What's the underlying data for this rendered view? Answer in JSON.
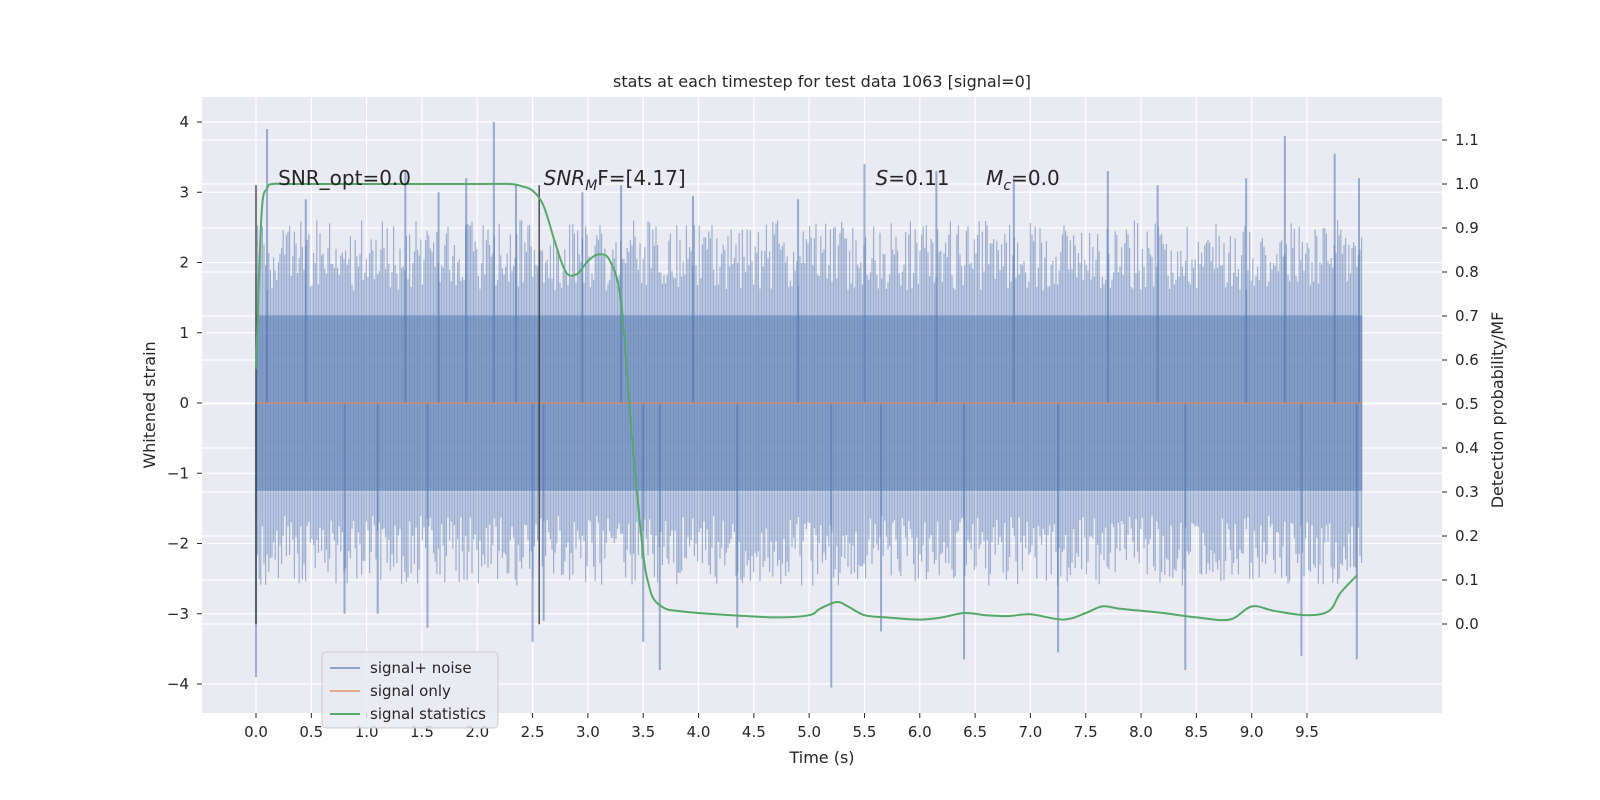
{
  "colors": {
    "background": "#ffffff",
    "plot_area": "#eaeaf2",
    "grid": "#ffffff",
    "noise": "#4c72b0",
    "signal_only": "#dd8452",
    "statistics": "#55a868",
    "marker_line": "#333333",
    "text": "#262626"
  },
  "legend": {
    "placement": "lower-left",
    "items": [
      {
        "label": "signal+ noise",
        "color": "#4c72b0"
      },
      {
        "label": "signal only",
        "color": "#dd8452"
      },
      {
        "label": "signal statistics",
        "color": "#55a868"
      }
    ]
  },
  "annotations": {
    "snr_opt": {
      "text": "SNR_opt=0.0",
      "x": 0.2
    },
    "snr_mf": {
      "base": "SNR",
      "sub": "M",
      "rest": "F=[4.17]",
      "x": 2.6
    },
    "s_value": {
      "italic": "S",
      "rest": "=0.11",
      "x": 5.6
    },
    "mc_value": {
      "base": "M",
      "sub": "c",
      "rest": "=0.0",
      "x": 6.6
    }
  },
  "chart_data": {
    "type": "line",
    "title": "stats at each timestep for test data 1063 [signal=0]",
    "xlabel": "Time (s)",
    "ylabel": "Whitened strain",
    "y2label": "Detection probability/MF",
    "xlim": [
      -0.5,
      10.5
    ],
    "ylim": [
      -4.4,
      4.4
    ],
    "y2lim": [
      -0.15,
      1.2
    ],
    "grid": true,
    "x_ticks": [
      "0.0",
      "0.5",
      "1.0",
      "1.5",
      "2.0",
      "2.5",
      "3.0",
      "3.5",
      "4.0",
      "4.5",
      "5.0",
      "5.5",
      "6.0",
      "6.5",
      "7.0",
      "7.5",
      "8.0",
      "8.5",
      "9.0",
      "9.5"
    ],
    "y_ticks": [
      "4",
      "3",
      "2",
      "1",
      "0",
      "−1",
      "−2",
      "−3",
      "−4"
    ],
    "y2_ticks": [
      "1.1",
      "1.0",
      "0.9",
      "0.8",
      "0.7",
      "0.6",
      "0.5",
      "0.4",
      "0.3",
      "0.2",
      "0.1",
      "0.0"
    ],
    "vertical_markers": [
      0.0,
      2.56
    ],
    "marker_range": [
      -3.15,
      3.1
    ],
    "series": [
      {
        "name": "signal+ noise",
        "axis": "left",
        "x_range": [
          0.0,
          10.0
        ],
        "envelope_abs": 1.25,
        "spikes": [
          [
            0.1,
            3.9
          ],
          [
            0.0,
            -3.9
          ],
          [
            0.45,
            2.9
          ],
          [
            0.8,
            -3.0
          ],
          [
            1.1,
            -3.0
          ],
          [
            1.35,
            3.3
          ],
          [
            1.55,
            -3.2
          ],
          [
            1.65,
            3.0
          ],
          [
            1.9,
            3.2
          ],
          [
            2.15,
            4.0
          ],
          [
            2.35,
            3.1
          ],
          [
            2.5,
            -3.4
          ],
          [
            2.6,
            -3.1
          ],
          [
            2.95,
            3.0
          ],
          [
            3.3,
            3.1
          ],
          [
            3.5,
            -3.4
          ],
          [
            3.65,
            -3.8
          ],
          [
            3.95,
            2.95
          ],
          [
            4.35,
            -3.2
          ],
          [
            4.9,
            2.9
          ],
          [
            5.2,
            -4.05
          ],
          [
            5.5,
            3.4
          ],
          [
            5.65,
            -3.25
          ],
          [
            6.15,
            3.3
          ],
          [
            6.4,
            -3.65
          ],
          [
            6.85,
            3.2
          ],
          [
            7.25,
            -3.55
          ],
          [
            7.7,
            3.3
          ],
          [
            8.15,
            3.1
          ],
          [
            8.4,
            -3.8
          ],
          [
            8.95,
            3.2
          ],
          [
            9.3,
            3.8
          ],
          [
            9.45,
            -3.6
          ],
          [
            9.75,
            3.55
          ],
          [
            9.95,
            -3.65
          ],
          [
            9.97,
            3.2
          ]
        ]
      },
      {
        "name": "signal only",
        "axis": "left",
        "x": [
          0.0,
          10.0
        ],
        "y": [
          0.0,
          0.0
        ]
      },
      {
        "name": "signal statistics",
        "axis": "right",
        "x": [
          0.0,
          0.05,
          0.1,
          0.15,
          0.25,
          0.5,
          1.0,
          1.5,
          2.0,
          2.3,
          2.4,
          2.5,
          2.6,
          2.7,
          2.8,
          2.9,
          3.0,
          3.1,
          3.2,
          3.3,
          3.4,
          3.5,
          3.55,
          3.6,
          3.7,
          3.8,
          4.0,
          4.3,
          4.7,
          5.0,
          5.1,
          5.25,
          5.35,
          5.5,
          5.7,
          6.0,
          6.2,
          6.4,
          6.6,
          6.8,
          7.0,
          7.3,
          7.5,
          7.65,
          7.8,
          8.0,
          8.2,
          8.5,
          8.8,
          9.0,
          9.2,
          9.5,
          9.7,
          9.8,
          9.95
        ],
        "y": [
          0.58,
          0.93,
          0.99,
          1.0,
          1.0,
          1.0,
          1.0,
          1.0,
          1.0,
          1.0,
          0.995,
          0.985,
          0.95,
          0.87,
          0.8,
          0.795,
          0.825,
          0.84,
          0.825,
          0.73,
          0.42,
          0.16,
          0.09,
          0.055,
          0.035,
          0.03,
          0.025,
          0.02,
          0.015,
          0.02,
          0.035,
          0.05,
          0.04,
          0.02,
          0.015,
          0.01,
          0.015,
          0.025,
          0.02,
          0.018,
          0.022,
          0.01,
          0.025,
          0.04,
          0.035,
          0.03,
          0.025,
          0.015,
          0.01,
          0.04,
          0.03,
          0.02,
          0.03,
          0.07,
          0.11
        ]
      }
    ]
  }
}
